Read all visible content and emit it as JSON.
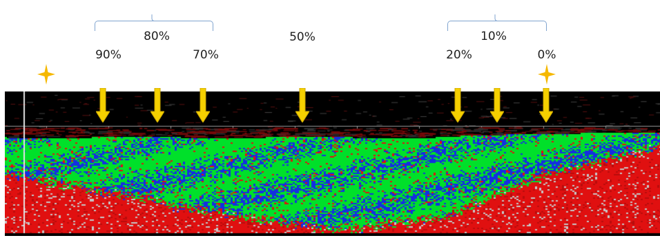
{
  "labels": {
    "p90": "90%",
    "p80": "80%",
    "p70": "70%",
    "p50": "50%",
    "p20": "20%",
    "p10": "10%",
    "p0": "0%"
  },
  "colors": {
    "arrow": "#f5d000",
    "arrow_outline": "#c9a400",
    "star": "#f5b800",
    "bracket": "#7fa3cf",
    "band_top": "#000000",
    "green": "#00e02a",
    "blue": "#1430e0",
    "red": "#e01010"
  },
  "icons": [
    "star-icon",
    "down-arrow-icon"
  ]
}
